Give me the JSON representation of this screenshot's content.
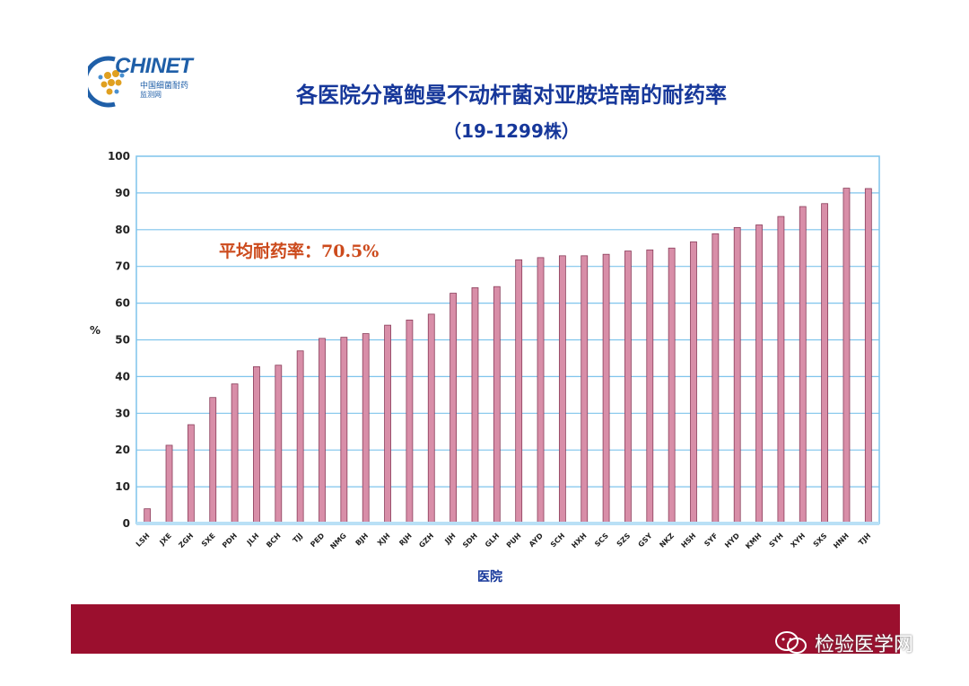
{
  "logo": {
    "text": "CHINET",
    "sub1": "中国细菌耐药",
    "sub2": "监测网"
  },
  "title": "各医院分离鲍曼不动杆菌对亚胺培南的耐药率",
  "subtitle": "（19-1299株）",
  "annotation": "平均耐药率：70.5%",
  "watermark": "检验医学网",
  "colors": {
    "title": "#16379a",
    "bar": "#d88ea8",
    "annotation": "#cc4a1c",
    "footer": "#9b0f2e",
    "plot_border": "#7fc4ec"
  },
  "chart_data": {
    "type": "bar",
    "title": "各医院分离鲍曼不动杆菌对亚胺培南的耐药率",
    "subtitle": "（19-1299株）",
    "xlabel": "医院",
    "ylabel": "%",
    "ylim": [
      0,
      100
    ],
    "yticks": [
      0,
      10,
      20,
      30,
      40,
      50,
      60,
      70,
      80,
      90,
      100
    ],
    "grid": "horizontal",
    "categories": [
      "LSH",
      "JXE",
      "ZGH",
      "SXE",
      "PDH",
      "JLH",
      "BCH",
      "TJJ",
      "PED",
      "NMG",
      "BJH",
      "XJH",
      "RJH",
      "GZH",
      "JJH",
      "SDH",
      "GLH",
      "PUH",
      "AYD",
      "SCH",
      "HXH",
      "SCS",
      "SZS",
      "GSY",
      "NKZ",
      "HSH",
      "SYF",
      "HYD",
      "KMH",
      "SYH",
      "XYH",
      "SXS",
      "HNH",
      "TJH"
    ],
    "values": [
      4,
      21.3,
      26.9,
      34.3,
      38,
      42.7,
      43.1,
      47,
      50.4,
      50.7,
      51.7,
      54,
      55.4,
      57,
      62.7,
      64.2,
      64.5,
      71.8,
      72.4,
      72.9,
      72.9,
      73.3,
      74.2,
      74.5,
      75,
      76.7,
      78.9,
      80.6,
      81.3,
      83.6,
      86.3,
      87.1,
      91.3,
      91.2
    ]
  }
}
